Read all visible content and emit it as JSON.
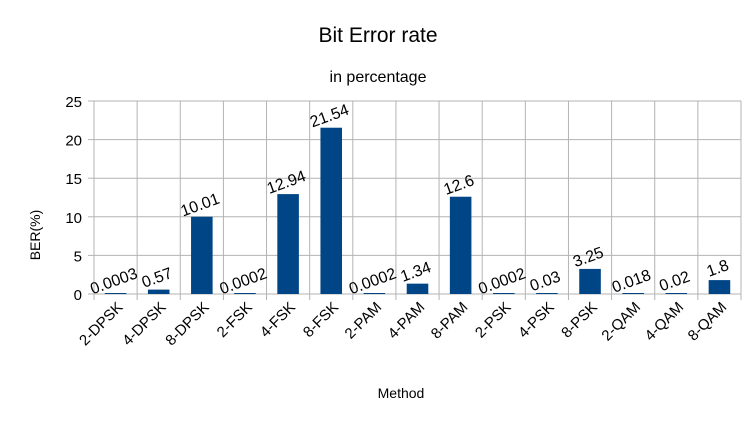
{
  "chart_data": {
    "type": "bar",
    "title": "Bit Error rate",
    "subtitle": "in percentage",
    "xlabel": "Method",
    "ylabel": "BER(%)",
    "ylim": [
      0,
      25
    ],
    "yticks": [
      0,
      5,
      10,
      15,
      20,
      25
    ],
    "grid": true,
    "legend": "none",
    "bar_color": "#004586",
    "categories": [
      "2-DPSK",
      "4-DPSK",
      "8-DPSK",
      "2-FSK",
      "4-FSK",
      "8-FSK",
      "2-PAM",
      "4-PAM",
      "8-PAM",
      "2-PSK",
      "4-PSK",
      "8-PSK",
      "2-QAM",
      "4-QAM",
      "8-QAM"
    ],
    "values": [
      0.0003,
      0.57,
      10.01,
      0.0002,
      12.94,
      21.54,
      0.0002,
      1.34,
      12.6,
      0.0002,
      0.03,
      3.25,
      0.018,
      0.02,
      1.8
    ],
    "data_labels": [
      "0.0003",
      "0.57",
      "10.01",
      "0.0002",
      "12.94",
      "21.54",
      "0.0002",
      "1.34",
      "12.6",
      "0.0002",
      "0.03",
      "3.25",
      "0.018",
      "0.02",
      "1.8"
    ]
  }
}
